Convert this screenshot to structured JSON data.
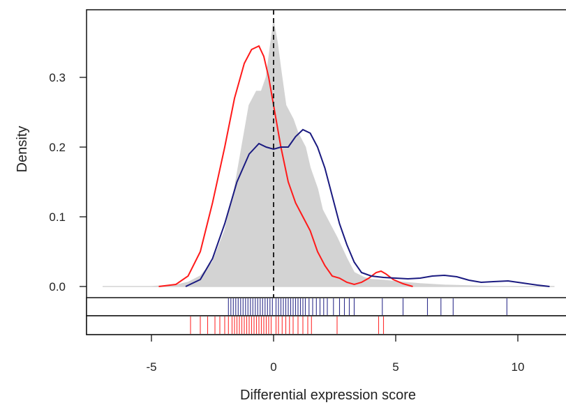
{
  "chart_data": {
    "type": "area",
    "title": "",
    "xlabel": "Differential expression score",
    "ylabel": "Density",
    "xlim": [
      -7.5,
      11.8
    ],
    "ylim": [
      -0.012,
      0.38
    ],
    "x_ticks": [
      -5,
      0,
      5,
      10
    ],
    "x_tick_labels": [
      "-5",
      "0",
      "5",
      "10"
    ],
    "y_ticks": [
      0.0,
      0.1,
      0.2,
      0.3
    ],
    "y_tick_labels": [
      "0.0",
      "0.1",
      "0.2",
      "0.3"
    ],
    "reference_line_x": 0,
    "colors": {
      "background_density": "#d3d3d3",
      "red_series": "#ff1a1a",
      "blue_series": "#1a1a80",
      "reference": "#222222"
    },
    "series": [
      {
        "kind": "filled-density",
        "color": "#d3d3d3",
        "points": [
          [
            -7,
            0.0
          ],
          [
            -5,
            0.0
          ],
          [
            -4,
            0.002
          ],
          [
            -3.5,
            0.006
          ],
          [
            -3,
            0.015
          ],
          [
            -2.5,
            0.035
          ],
          [
            -2,
            0.08
          ],
          [
            -1.6,
            0.14
          ],
          [
            -1.3,
            0.2
          ],
          [
            -1.0,
            0.26
          ],
          [
            -0.7,
            0.28
          ],
          [
            -0.5,
            0.28
          ],
          [
            -0.3,
            0.3
          ],
          [
            -0.15,
            0.34
          ],
          [
            0,
            0.38
          ],
          [
            0.15,
            0.35
          ],
          [
            0.3,
            0.31
          ],
          [
            0.5,
            0.26
          ],
          [
            0.8,
            0.24
          ],
          [
            1.0,
            0.22
          ],
          [
            1.3,
            0.2
          ],
          [
            1.5,
            0.17
          ],
          [
            1.8,
            0.14
          ],
          [
            2.0,
            0.11
          ],
          [
            2.3,
            0.09
          ],
          [
            2.6,
            0.07
          ],
          [
            3.0,
            0.04
          ],
          [
            3.3,
            0.02
          ],
          [
            3.7,
            0.013
          ],
          [
            4.0,
            0.01
          ],
          [
            4.5,
            0.009
          ],
          [
            5.0,
            0.007
          ],
          [
            6.0,
            0.004
          ],
          [
            7.0,
            0.002
          ],
          [
            8.0,
            0.001
          ],
          [
            9.0,
            0.0
          ],
          [
            11.5,
            0.0
          ]
        ]
      },
      {
        "kind": "line-density",
        "color": "#ff1a1a",
        "points": [
          [
            -4.7,
            0.0
          ],
          [
            -4.0,
            0.003
          ],
          [
            -3.5,
            0.015
          ],
          [
            -3.0,
            0.05
          ],
          [
            -2.5,
            0.12
          ],
          [
            -2.0,
            0.2
          ],
          [
            -1.6,
            0.27
          ],
          [
            -1.2,
            0.32
          ],
          [
            -0.9,
            0.34
          ],
          [
            -0.6,
            0.345
          ],
          [
            -0.4,
            0.33
          ],
          [
            -0.2,
            0.3
          ],
          [
            0.0,
            0.26
          ],
          [
            0.3,
            0.2
          ],
          [
            0.6,
            0.15
          ],
          [
            0.9,
            0.12
          ],
          [
            1.2,
            0.1
          ],
          [
            1.5,
            0.08
          ],
          [
            1.8,
            0.05
          ],
          [
            2.1,
            0.03
          ],
          [
            2.4,
            0.015
          ],
          [
            2.7,
            0.012
          ],
          [
            3.0,
            0.006
          ],
          [
            3.3,
            0.003
          ],
          [
            3.6,
            0.006
          ],
          [
            3.9,
            0.012
          ],
          [
            4.2,
            0.02
          ],
          [
            4.4,
            0.022
          ],
          [
            4.6,
            0.018
          ],
          [
            4.9,
            0.01
          ],
          [
            5.3,
            0.004
          ],
          [
            5.7,
            0.0
          ]
        ]
      },
      {
        "kind": "line-density",
        "color": "#1a1a80",
        "points": [
          [
            -3.6,
            0.0
          ],
          [
            -3.0,
            0.01
          ],
          [
            -2.5,
            0.04
          ],
          [
            -2.0,
            0.09
          ],
          [
            -1.5,
            0.15
          ],
          [
            -1.0,
            0.19
          ],
          [
            -0.6,
            0.205
          ],
          [
            -0.3,
            0.2
          ],
          [
            0.0,
            0.197
          ],
          [
            0.3,
            0.2
          ],
          [
            0.6,
            0.2
          ],
          [
            0.9,
            0.215
          ],
          [
            1.2,
            0.225
          ],
          [
            1.5,
            0.22
          ],
          [
            1.8,
            0.2
          ],
          [
            2.1,
            0.17
          ],
          [
            2.4,
            0.13
          ],
          [
            2.7,
            0.09
          ],
          [
            3.0,
            0.06
          ],
          [
            3.3,
            0.035
          ],
          [
            3.6,
            0.02
          ],
          [
            4.0,
            0.015
          ],
          [
            4.5,
            0.013
          ],
          [
            5.0,
            0.012
          ],
          [
            5.5,
            0.011
          ],
          [
            6.0,
            0.012
          ],
          [
            6.5,
            0.015
          ],
          [
            7.0,
            0.016
          ],
          [
            7.5,
            0.014
          ],
          [
            8.0,
            0.009
          ],
          [
            8.5,
            0.006
          ],
          [
            9.0,
            0.007
          ],
          [
            9.6,
            0.008
          ],
          [
            10.2,
            0.005
          ],
          [
            10.8,
            0.002
          ],
          [
            11.3,
            0.0
          ]
        ]
      }
    ],
    "rug": [
      {
        "color": "#1a1a80",
        "values": [
          -1.85,
          -1.75,
          -1.65,
          -1.55,
          -1.45,
          -1.35,
          -1.25,
          -1.15,
          -1.05,
          -0.95,
          -0.85,
          -0.75,
          -0.65,
          -0.55,
          -0.45,
          -0.35,
          -0.25,
          -0.15,
          -0.05,
          0.1,
          0.2,
          0.3,
          0.4,
          0.5,
          0.6,
          0.7,
          0.8,
          0.9,
          1.0,
          1.1,
          1.2,
          1.3,
          1.45,
          1.6,
          1.75,
          1.9,
          2.05,
          2.2,
          2.45,
          2.7,
          2.9,
          3.1,
          3.3,
          4.45,
          5.3,
          6.3,
          6.85,
          7.35,
          9.55
        ]
      },
      {
        "color": "#ff1a1a",
        "values": [
          -3.4,
          -3.0,
          -2.7,
          -2.4,
          -2.2,
          -2.0,
          -1.85,
          -1.7,
          -1.6,
          -1.5,
          -1.4,
          -1.3,
          -1.2,
          -1.1,
          -1.0,
          -0.9,
          -0.8,
          -0.7,
          -0.6,
          -0.5,
          -0.4,
          -0.3,
          -0.2,
          -0.1,
          0.1,
          0.2,
          0.35,
          0.5,
          0.65,
          0.8,
          1.0,
          1.2,
          1.4,
          1.55,
          2.6,
          4.3,
          4.5
        ]
      }
    ]
  }
}
